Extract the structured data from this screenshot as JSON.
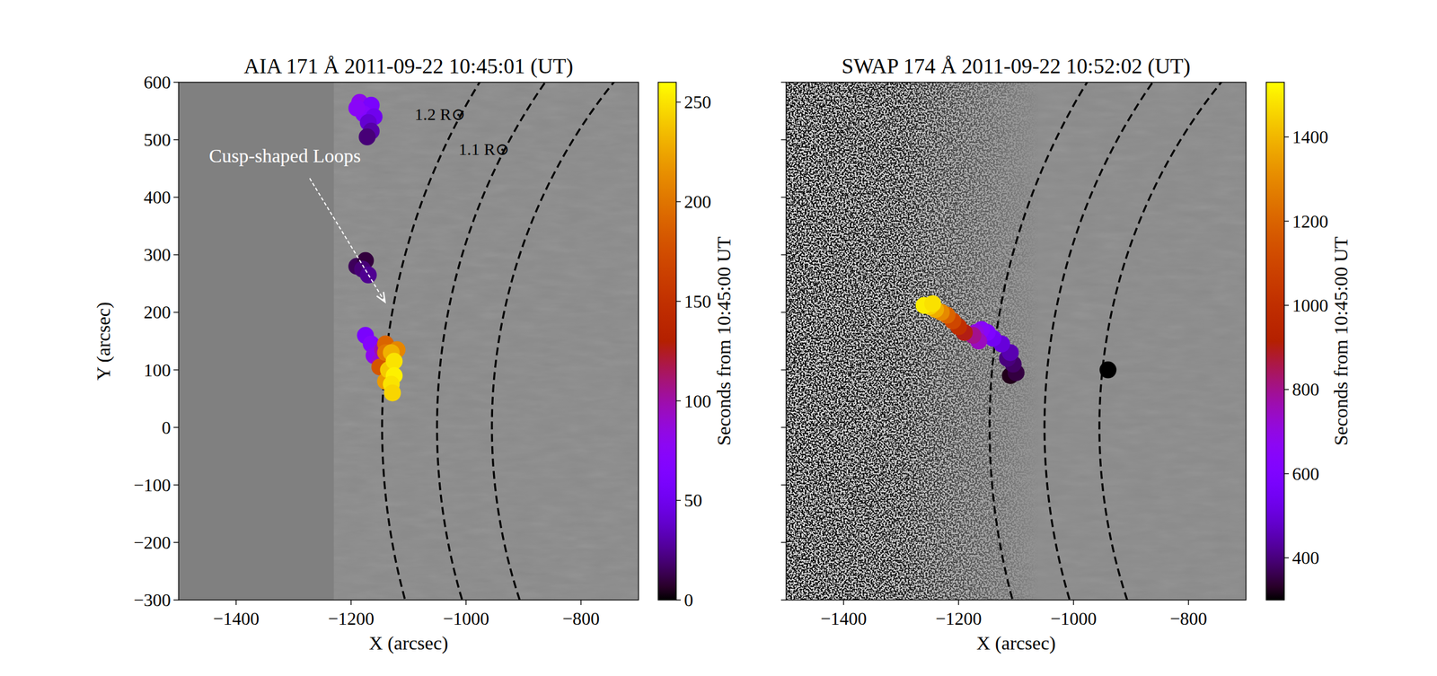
{
  "chart_data": [
    {
      "type": "scatter",
      "title": "AIA 171 Å 2011-09-22 10:45:01 (UT)",
      "x_label": "X (arcsec)",
      "y_label": "Y (arcsec)",
      "xlim": [
        -1500,
        -700
      ],
      "ylim": [
        -300,
        600
      ],
      "xticks": [
        {
          "value": -1400,
          "label": "−1400"
        },
        {
          "value": -1200,
          "label": "−1200"
        },
        {
          "value": -1000,
          "label": "−1000"
        },
        {
          "value": -800,
          "label": "−800"
        }
      ],
      "yticks": [
        {
          "value": -300,
          "label": "−300"
        },
        {
          "value": -200,
          "label": "−200"
        },
        {
          "value": -100,
          "label": "−100"
        },
        0,
        100,
        200,
        300,
        400,
        500,
        600
      ],
      "tick_labels": true,
      "fov_xmin": -1230,
      "solar_radius": 955,
      "circles": {
        "radii": [
          1.0,
          1.1,
          1.2
        ],
        "labels": [
          null,
          "1.1 R⊙",
          "1.2 R⊙"
        ],
        "label_y": [
          null,
          480,
          540
        ]
      },
      "annotations": [
        {
          "text": "Cusp-shaped Loops",
          "x": -1447,
          "y": 461,
          "arrow_from": [
            -1272,
            433
          ],
          "arrow_to": [
            -1141,
            218
          ]
        }
      ],
      "x": [
        -1185,
        -1165,
        -1178,
        -1160,
        -1170,
        -1165,
        -1172,
        -1190,
        -1190,
        -1175,
        -1180,
        -1170,
        -1175,
        -1165,
        -1160,
        -1150,
        -1145,
        -1150,
        -1140,
        -1140,
        -1120,
        -1140,
        -1130,
        -1135,
        -1125,
        -1125,
        -1130,
        -1128
      ],
      "y": [
        565,
        560,
        545,
        540,
        530,
        515,
        505,
        555,
        280,
        290,
        275,
        265,
        160,
        145,
        125,
        115,
        135,
        105,
        145,
        80,
        135,
        130,
        130,
        100,
        115,
        90,
        75,
        60
      ],
      "time": [
        80,
        60,
        70,
        50,
        40,
        30,
        20,
        75,
        15,
        10,
        20,
        25,
        60,
        70,
        80,
        90,
        100,
        180,
        190,
        220,
        210,
        200,
        230,
        240,
        250,
        255,
        250,
        245
      ],
      "colorbar": {
        "label": "Seconds from 10:45:00 UT",
        "lim": [
          0,
          260
        ],
        "ticks": [
          0,
          50,
          100,
          150,
          200,
          250
        ]
      }
    },
    {
      "type": "scatter",
      "title": "SWAP 174 Å 2011-09-22 10:52:02 (UT)",
      "x_label": "X (arcsec)",
      "xlim": [
        -1500,
        -700
      ],
      "ylim": [
        -300,
        600
      ],
      "xticks": [
        {
          "value": -1400,
          "label": "−1400"
        },
        {
          "value": -1200,
          "label": "−1200"
        },
        {
          "value": -1000,
          "label": "−1000"
        },
        {
          "value": -800,
          "label": "−800"
        }
      ],
      "yticks": [
        -300,
        -200,
        -100,
        0,
        100,
        200,
        300,
        400,
        500,
        600
      ],
      "tick_labels": "x",
      "solar_radius": 955,
      "circles": {
        "radii": [
          1.0,
          1.1,
          1.2
        ]
      },
      "x": [
        -940,
        -1110,
        -1100,
        -1105,
        -1115,
        -1110,
        -1125,
        -1140,
        -1150,
        -1160,
        -1170,
        -1165,
        -1175,
        -1190,
        -1200,
        -1210,
        -1220,
        -1230,
        -1240,
        -1250,
        -1260,
        -1245
      ],
      "y": [
        100,
        90,
        95,
        110,
        120,
        130,
        145,
        155,
        165,
        170,
        165,
        150,
        160,
        165,
        175,
        185,
        195,
        200,
        205,
        210,
        212,
        215
      ],
      "time": [
        300,
        320,
        350,
        380,
        400,
        450,
        500,
        550,
        600,
        650,
        700,
        750,
        800,
        900,
        1000,
        1100,
        1200,
        1300,
        1380,
        1450,
        1500,
        1480
      ],
      "colorbar": {
        "label": "Seconds from 10:45:00 UT",
        "lim": [
          300,
          1530
        ],
        "ticks": [
          400,
          600,
          800,
          1000,
          1200,
          1400
        ]
      }
    }
  ]
}
